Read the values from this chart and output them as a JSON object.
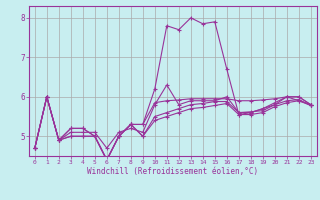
{
  "xlabel": "Windchill (Refroidissement éolien,°C)",
  "background_color": "#c8eef0",
  "grid_color": "#aaaaaa",
  "line_color": "#993399",
  "xlim": [
    -0.5,
    23.5
  ],
  "ylim": [
    4.5,
    8.3
  ],
  "yticks": [
    5,
    6,
    7,
    8
  ],
  "xticks": [
    0,
    1,
    2,
    3,
    4,
    5,
    6,
    7,
    8,
    9,
    10,
    11,
    12,
    13,
    14,
    15,
    16,
    17,
    18,
    19,
    20,
    21,
    22,
    23
  ],
  "series": [
    [
      4.7,
      6.0,
      4.9,
      5.1,
      5.1,
      5.1,
      4.7,
      5.1,
      5.2,
      5.1,
      5.8,
      6.3,
      5.8,
      5.9,
      5.9,
      5.9,
      6.0,
      5.6,
      5.6,
      5.7,
      5.8,
      6.0,
      5.9,
      5.8
    ],
    [
      4.7,
      6.0,
      4.9,
      5.2,
      5.2,
      5.0,
      4.4,
      5.0,
      5.3,
      5.3,
      6.2,
      7.8,
      7.7,
      8.0,
      7.85,
      7.9,
      6.7,
      5.55,
      5.6,
      5.7,
      5.85,
      6.0,
      6.0,
      5.8
    ],
    [
      4.7,
      6.0,
      4.9,
      5.2,
      5.2,
      5.0,
      4.4,
      5.0,
      5.3,
      5.3,
      5.85,
      5.9,
      5.92,
      5.95,
      5.95,
      5.95,
      5.95,
      5.9,
      5.9,
      5.92,
      5.95,
      6.0,
      6.0,
      5.8
    ],
    [
      4.7,
      6.0,
      4.9,
      5.0,
      5.0,
      5.0,
      4.4,
      5.0,
      5.3,
      5.0,
      5.5,
      5.6,
      5.7,
      5.8,
      5.83,
      5.88,
      5.88,
      5.6,
      5.62,
      5.65,
      5.8,
      5.9,
      5.93,
      5.78
    ],
    [
      4.7,
      6.0,
      4.9,
      5.0,
      5.0,
      5.0,
      4.4,
      5.0,
      5.3,
      5.0,
      5.4,
      5.5,
      5.6,
      5.7,
      5.73,
      5.78,
      5.83,
      5.55,
      5.55,
      5.6,
      5.75,
      5.85,
      5.9,
      5.78
    ]
  ]
}
